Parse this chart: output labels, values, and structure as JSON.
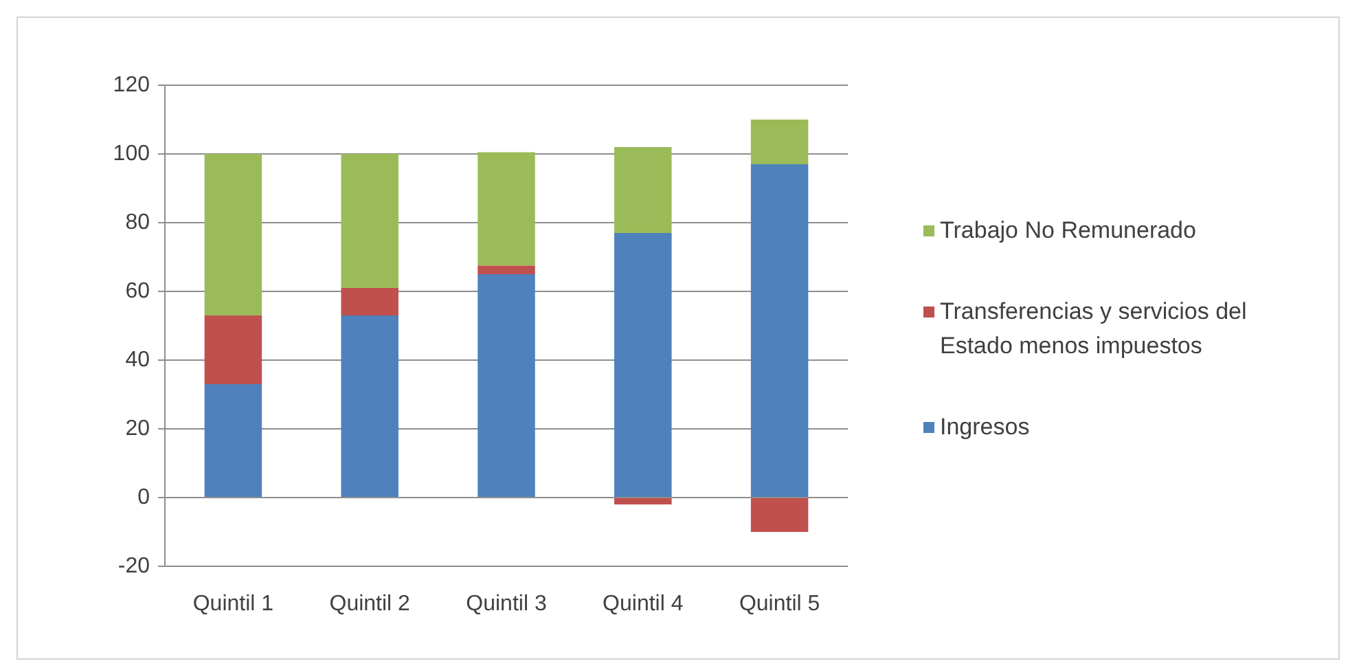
{
  "chart_data": {
    "type": "bar",
    "stacked": true,
    "categories": [
      "Quintil 1",
      "Quintil 2",
      "Quintil 3",
      "Quintil 4",
      "Quintil 5"
    ],
    "series": [
      {
        "name": "Ingresos",
        "color": "#4f81bd",
        "values": [
          33,
          53,
          65,
          77,
          97
        ]
      },
      {
        "name": "Transferencias y servicios del Estado menos impuestos",
        "color": "#c0504d",
        "values": [
          20,
          8,
          2.5,
          -2,
          -10
        ]
      },
      {
        "name": "Trabajo No Remunerado",
        "color": "#9bbb59",
        "values": [
          47,
          39,
          33,
          25,
          13
        ]
      }
    ],
    "ylim": [
      -20,
      120
    ],
    "yticks": [
      -20,
      0,
      20,
      40,
      60,
      80,
      100,
      120
    ],
    "grid": "y",
    "legend": "right"
  }
}
